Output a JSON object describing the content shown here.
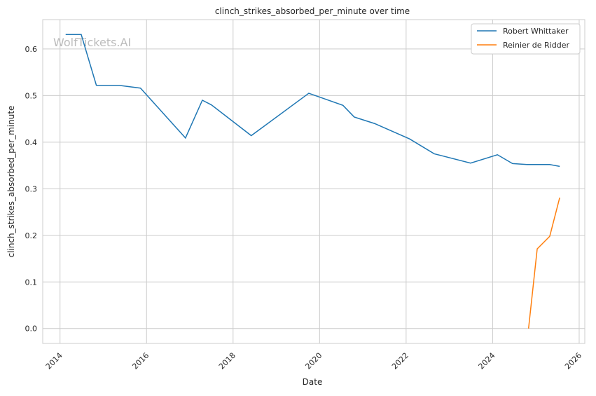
{
  "chart_data": {
    "type": "line",
    "title": "clinch_strikes_absorbed_per_minute over time",
    "xlabel": "Date",
    "ylabel": "clinch_strikes_absorbed_per_minute",
    "xlim": [
      2013.6,
      2026.13
    ],
    "ylim": [
      -0.032,
      0.663
    ],
    "x_ticks": [
      2014,
      2016,
      2018,
      2020,
      2022,
      2024,
      2026
    ],
    "y_ticks": [
      0.0,
      0.1,
      0.2,
      0.3,
      0.4,
      0.5,
      0.6
    ],
    "y_tick_labels": [
      "0.0",
      "0.1",
      "0.2",
      "0.3",
      "0.4",
      "0.5",
      "0.6"
    ],
    "grid": true,
    "legend_position": "top-right",
    "watermark": "WolfTickets.AI",
    "series": [
      {
        "name": "Robert Whittaker",
        "color": "#1f77b4",
        "x": [
          2014.13,
          2014.49,
          2014.84,
          2015.36,
          2015.86,
          2016.9,
          2017.29,
          2017.5,
          2018.42,
          2019.75,
          2020.54,
          2020.8,
          2021.27,
          2022.08,
          2022.65,
          2023.49,
          2024.11,
          2024.46,
          2024.8,
          2025.32,
          2025.55
        ],
        "y": [
          0.631,
          0.631,
          0.522,
          0.522,
          0.516,
          0.409,
          0.49,
          0.48,
          0.414,
          0.505,
          0.479,
          0.454,
          0.44,
          0.407,
          0.375,
          0.355,
          0.373,
          0.354,
          0.352,
          0.352,
          0.348
        ]
      },
      {
        "name": "Reinier de Ridder",
        "color": "#ff7f0e",
        "x": [
          2024.83,
          2025.03,
          2025.32,
          2025.55
        ],
        "y": [
          0.0,
          0.171,
          0.198,
          0.281
        ]
      }
    ]
  }
}
